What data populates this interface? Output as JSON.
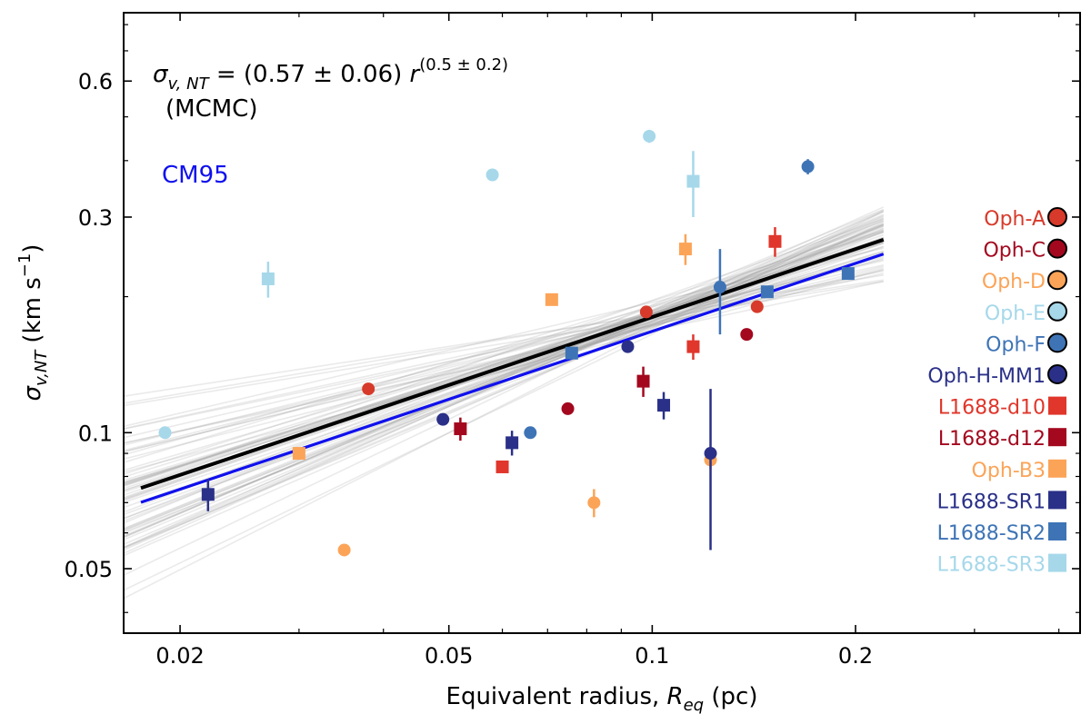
{
  "chart_data": {
    "type": "scatter",
    "xscale": "log",
    "yscale": "log",
    "xlim": [
      0.0165,
      0.43
    ],
    "ylim": [
      0.036,
      0.85
    ],
    "xlabel_prefix": "Equivalent radius, ",
    "xlabel_var": "R",
    "xlabel_sub": "eq",
    "xlabel_suffix": " (pc)",
    "ylabel_var": "σ",
    "ylabel_sub": "v,NT",
    "ylabel_unit": "(km s",
    "ylabel_exp": "−1",
    "ylabel_close": ")",
    "xticks": [
      {
        "value": 0.02,
        "label": "0.02"
      },
      {
        "value": 0.05,
        "label": "0.05"
      },
      {
        "value": 0.1,
        "label": "0.1"
      },
      {
        "value": 0.2,
        "label": "0.2"
      }
    ],
    "yticks": [
      {
        "value": 0.05,
        "label": "0.05"
      },
      {
        "value": 0.1,
        "label": "0.1"
      },
      {
        "value": 0.3,
        "label": "0.3"
      },
      {
        "value": 0.6,
        "label": "0.6"
      }
    ],
    "annotation": {
      "sigma": "σ",
      "sub": "v, NT",
      "eq": " = (0.57 ± 0.06) ",
      "r": "r",
      "exp": "(0.5 ± 0.2)",
      "method": "(MCMC)"
    },
    "fits": [
      {
        "name": "MCMC",
        "label": "",
        "amp": 0.57,
        "index": 0.5,
        "color": "#000000",
        "xrange": [
          0.0175,
          0.22
        ]
      },
      {
        "name": "CM95",
        "label": "CM95",
        "amp": 0.53,
        "index": 0.5,
        "color": "#1010ee",
        "xrange": [
          0.0175,
          0.22
        ]
      }
    ],
    "samples": {
      "count": 70,
      "color": "#a0a0a0",
      "amp_center": 0.57,
      "amp_spread": 0.06,
      "index_center": 0.5,
      "index_spread": 0.2,
      "pivot": 0.1
    },
    "series": [
      {
        "name": "Oph-A",
        "marker": "circle",
        "color": "#d73a2a",
        "points": [
          {
            "x": 0.038,
            "y": 0.125
          },
          {
            "x": 0.098,
            "y": 0.185
          },
          {
            "x": 0.143,
            "y": 0.19
          }
        ]
      },
      {
        "name": "Oph-C",
        "marker": "circle",
        "color": "#a3081e",
        "points": [
          {
            "x": 0.075,
            "y": 0.113
          },
          {
            "x": 0.138,
            "y": 0.165
          }
        ]
      },
      {
        "name": "Oph-D",
        "marker": "circle",
        "color": "#fba458",
        "points": [
          {
            "x": 0.035,
            "y": 0.055
          },
          {
            "x": 0.082,
            "y": 0.07,
            "err": 0.005
          },
          {
            "x": 0.122,
            "y": 0.087,
            "err": 0.004
          }
        ]
      },
      {
        "name": "Oph-E",
        "marker": "circle",
        "color": "#a6d8ea",
        "points": [
          {
            "x": 0.019,
            "y": 0.1
          },
          {
            "x": 0.058,
            "y": 0.372
          },
          {
            "x": 0.099,
            "y": 0.453,
            "err": 0.015
          }
        ]
      },
      {
        "name": "Oph-F",
        "marker": "circle",
        "color": "#3e74b6",
        "points": [
          {
            "x": 0.066,
            "y": 0.1
          },
          {
            "x": 0.126,
            "y": 0.21,
            "err": 0.045
          },
          {
            "x": 0.17,
            "y": 0.388,
            "err": 0.015
          }
        ]
      },
      {
        "name": "Oph-H-MM1",
        "marker": "circle",
        "color": "#2a3088",
        "points": [
          {
            "x": 0.049,
            "y": 0.107
          },
          {
            "x": 0.092,
            "y": 0.155
          },
          {
            "x": 0.122,
            "y": 0.09,
            "err": 0.035
          }
        ]
      },
      {
        "name": "L1688-d10",
        "marker": "square",
        "color": "#e0362b",
        "points": [
          {
            "x": 0.06,
            "y": 0.084
          },
          {
            "x": 0.115,
            "y": 0.155,
            "err": 0.01
          },
          {
            "x": 0.152,
            "y": 0.265,
            "err": 0.02
          }
        ]
      },
      {
        "name": "L1688-d12",
        "marker": "square",
        "color": "#a3081e",
        "points": [
          {
            "x": 0.052,
            "y": 0.102,
            "err": 0.006
          },
          {
            "x": 0.097,
            "y": 0.13,
            "err": 0.01
          }
        ]
      },
      {
        "name": "Oph-B3",
        "marker": "square",
        "color": "#fba458",
        "points": [
          {
            "x": 0.03,
            "y": 0.09
          },
          {
            "x": 0.071,
            "y": 0.197
          },
          {
            "x": 0.112,
            "y": 0.255,
            "err": 0.02
          }
        ]
      },
      {
        "name": "L1688-SR1",
        "marker": "square",
        "color": "#2a3088",
        "points": [
          {
            "x": 0.022,
            "y": 0.073,
            "err": 0.006
          },
          {
            "x": 0.062,
            "y": 0.095,
            "err": 0.006
          },
          {
            "x": 0.104,
            "y": 0.115,
            "err": 0.008
          }
        ]
      },
      {
        "name": "L1688-SR2",
        "marker": "square",
        "color": "#3e74b6",
        "points": [
          {
            "x": 0.076,
            "y": 0.15
          },
          {
            "x": 0.148,
            "y": 0.205
          },
          {
            "x": 0.195,
            "y": 0.225
          }
        ]
      },
      {
        "name": "L1688-SR3",
        "marker": "square",
        "color": "#a6d8ea",
        "points": [
          {
            "x": 0.027,
            "y": 0.219,
            "err": 0.02
          },
          {
            "x": 0.115,
            "y": 0.36,
            "err": 0.06
          }
        ]
      }
    ],
    "legend_position": "right"
  }
}
